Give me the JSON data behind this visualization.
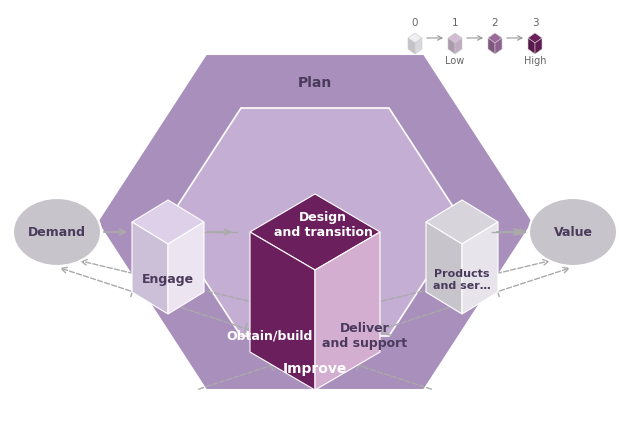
{
  "bg_color": "#ffffff",
  "outer_hex_color": "#a990bc",
  "inner_hex_color": "#c4aed4",
  "cube_top": "#6b1f5c",
  "cube_left": "#6b1f5c",
  "cube_right": "#d4aed0",
  "engage_top": "#ddd0e8",
  "engage_left": "#ccc0d8",
  "engage_right": "#ece4f0",
  "products_top": "#d8d4dc",
  "products_left": "#c8c4cc",
  "products_right": "#e8e4ec",
  "demand_color": "#c8c4cc",
  "value_color": "#c8c4cc",
  "text_dark": "#4a3a5c",
  "text_white": "#ffffff",
  "arrow_color": "#aaaaaa",
  "label_plan": "Plan",
  "label_improve": "Improve",
  "label_engage": "Engage",
  "label_design": "Design\nand transition",
  "label_obtain": "Obtain/build",
  "label_deliver": "Deliver\nand support",
  "label_products": "Products\nand ser…",
  "label_demand": "Demand",
  "label_value": "Value",
  "legend_nums": [
    "0",
    "1",
    "2",
    "3"
  ],
  "legend_sub": [
    "",
    "Low",
    "",
    "High"
  ],
  "legend_colors": [
    "#f0eef2",
    "#d4bcd4",
    "#9b6a9b",
    "#6b1f5c"
  ]
}
